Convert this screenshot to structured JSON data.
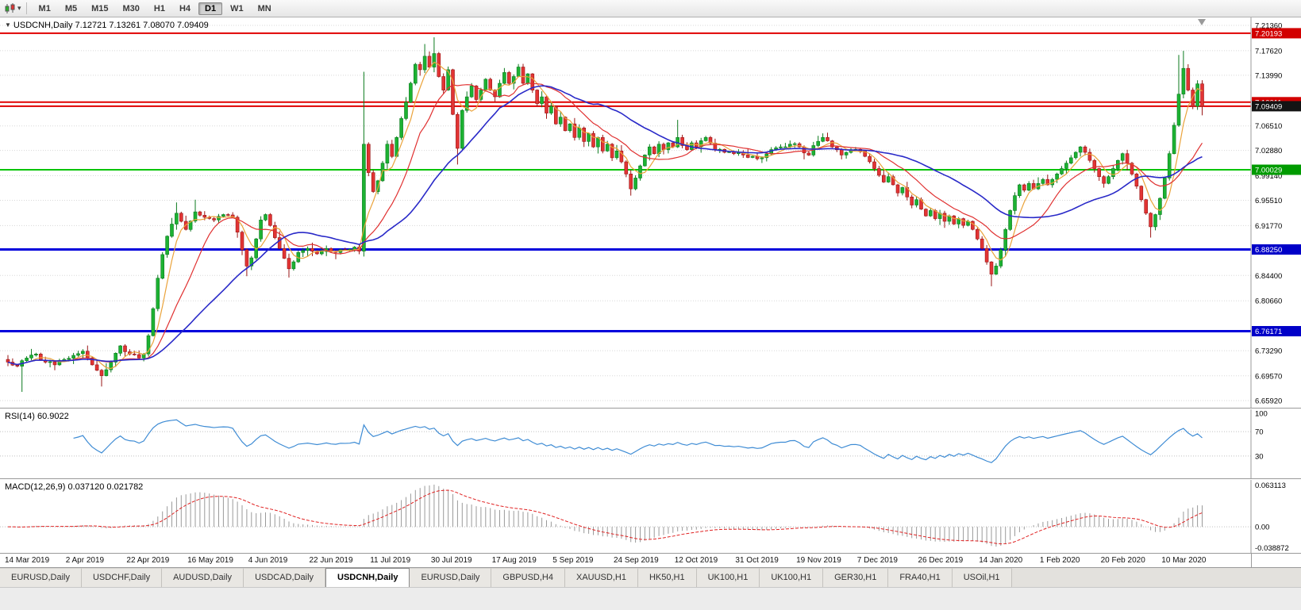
{
  "toolbar": {
    "timeframes": [
      "M1",
      "M5",
      "M15",
      "M30",
      "H1",
      "H4",
      "D1",
      "W1",
      "MN"
    ],
    "active_timeframe": "D1"
  },
  "chart": {
    "marker": "▼",
    "symbol": "USDCNH,Daily",
    "ohlc": "7.12721 7.13261 7.08070 7.09409"
  },
  "indicators": {
    "rsi_label": "RSI(14)",
    "rsi_value": "60.9022",
    "macd_label": "MACD(12,26,9)",
    "macd_values": "0.037120 0.021782"
  },
  "price_scale": {
    "ticks": [
      7.2136,
      7.1762,
      7.1399,
      7.0651,
      7.0288,
      6.9914,
      6.9551,
      6.9177,
      6.844,
      6.8066,
      6.7329,
      6.6957,
      6.6592
    ],
    "badges": [
      {
        "text": "7.20193",
        "price": 7.20193,
        "bg": "#d20000"
      },
      {
        "text": "7.10011",
        "price": 7.10011,
        "bg": "#d20000"
      },
      {
        "text": "7.09409",
        "price": 7.09409,
        "bg": "#141414"
      },
      {
        "text": "7.00029",
        "price": 7.00029,
        "bg": "#009b00"
      },
      {
        "text": "6.88250",
        "price": 6.8825,
        "bg": "#0000c8"
      },
      {
        "text": "6.76171",
        "price": 6.76171,
        "bg": "#0000c8"
      }
    ]
  },
  "colors": {
    "up": "#1cb232",
    "up_border": "#0b7a1e",
    "down": "#e23434",
    "down_border": "#9a1515",
    "grid": "#d8d8d8",
    "divider": "#9a9a9a",
    "rsi_line": "#3d8bd4",
    "macd_hist": "#9a9a9a",
    "macd_signal": "#e02020"
  },
  "chart_data": {
    "type": "candlestick",
    "symbol": "USDCNH",
    "timeframe": "Daily",
    "n_candles": 256,
    "ylim": [
      6.6486,
      7.2253
    ],
    "current_price": 7.09409,
    "hlines": [
      {
        "price": 7.20193,
        "color": "#e00000",
        "width": 2
      },
      {
        "price": 7.10011,
        "color": "#e00000",
        "width": 2
      },
      {
        "price": 7.09409,
        "color": "#e00000",
        "width": 2
      },
      {
        "price": 7.00029,
        "color": "#00c400",
        "width": 2
      },
      {
        "price": 6.8825,
        "color": "#0000dc",
        "width": 3
      },
      {
        "price": 6.76171,
        "color": "#0000dc",
        "width": 3
      }
    ],
    "moving_averages": [
      {
        "period": 5,
        "color": "#eaa33b"
      },
      {
        "period": 13,
        "color": "#e03030"
      },
      {
        "period": 30,
        "color": "#2929c8"
      }
    ],
    "close_anchors": [
      [
        0,
        6.716
      ],
      [
        2,
        6.71
      ],
      [
        4,
        6.722
      ],
      [
        6,
        6.728
      ],
      [
        8,
        6.716
      ],
      [
        10,
        6.712
      ],
      [
        12,
        6.72
      ],
      [
        14,
        6.726
      ],
      [
        16,
        6.732
      ],
      [
        18,
        6.712
      ],
      [
        20,
        6.696
      ],
      [
        22,
        6.716
      ],
      [
        24,
        6.74
      ],
      [
        26,
        6.728
      ],
      [
        28,
        6.722
      ],
      [
        29,
        6.728
      ],
      [
        30,
        6.755
      ],
      [
        31,
        6.795
      ],
      [
        32,
        6.84
      ],
      [
        33,
        6.875
      ],
      [
        34,
        6.902
      ],
      [
        35,
        6.92
      ],
      [
        36,
        6.936
      ],
      [
        37,
        6.924
      ],
      [
        38,
        6.912
      ],
      [
        40,
        6.938
      ],
      [
        42,
        6.93
      ],
      [
        44,
        6.926
      ],
      [
        46,
        6.934
      ],
      [
        48,
        6.93
      ],
      [
        49,
        6.908
      ],
      [
        50,
        6.882
      ],
      [
        51,
        6.858
      ],
      [
        52,
        6.87
      ],
      [
        53,
        6.898
      ],
      [
        54,
        6.926
      ],
      [
        55,
        6.934
      ],
      [
        56,
        6.918
      ],
      [
        57,
        6.9
      ],
      [
        58,
        6.884
      ],
      [
        60,
        6.854
      ],
      [
        62,
        6.878
      ],
      [
        64,
        6.884
      ],
      [
        66,
        6.876
      ],
      [
        68,
        6.884
      ],
      [
        70,
        6.878
      ],
      [
        72,
        6.882
      ],
      [
        74,
        6.886
      ],
      [
        75,
        6.88
      ],
      [
        76,
        7.038
      ],
      [
        77,
        6.996
      ],
      [
        78,
        6.968
      ],
      [
        79,
        6.984
      ],
      [
        80,
        7.01
      ],
      [
        81,
        7.038
      ],
      [
        82,
        7.02
      ],
      [
        83,
        7.048
      ],
      [
        84,
        7.076
      ],
      [
        85,
        7.1
      ],
      [
        86,
        7.128
      ],
      [
        87,
        7.156
      ],
      [
        88,
        7.148
      ],
      [
        89,
        7.168
      ],
      [
        90,
        7.152
      ],
      [
        91,
        7.172
      ],
      [
        92,
        7.138
      ],
      [
        93,
        7.118
      ],
      [
        94,
        7.148
      ],
      [
        95,
        7.082
      ],
      [
        96,
        7.032
      ],
      [
        97,
        7.088
      ],
      [
        98,
        7.108
      ],
      [
        99,
        7.124
      ],
      [
        100,
        7.104
      ],
      [
        101,
        7.118
      ],
      [
        102,
        7.134
      ],
      [
        103,
        7.118
      ],
      [
        104,
        7.108
      ],
      [
        105,
        7.128
      ],
      [
        106,
        7.144
      ],
      [
        107,
        7.128
      ],
      [
        108,
        7.138
      ],
      [
        109,
        7.152
      ],
      [
        110,
        7.128
      ],
      [
        111,
        7.142
      ],
      [
        112,
        7.118
      ],
      [
        113,
        7.098
      ],
      [
        114,
        7.108
      ],
      [
        115,
        7.084
      ],
      [
        116,
        7.094
      ],
      [
        117,
        7.068
      ],
      [
        118,
        7.078
      ],
      [
        119,
        7.058
      ],
      [
        120,
        7.068
      ],
      [
        121,
        7.048
      ],
      [
        122,
        7.062
      ],
      [
        123,
        7.042
      ],
      [
        124,
        7.054
      ],
      [
        125,
        7.034
      ],
      [
        126,
        7.048
      ],
      [
        127,
        7.028
      ],
      [
        128,
        7.038
      ],
      [
        129,
        7.018
      ],
      [
        130,
        7.028
      ],
      [
        131,
        7.012
      ],
      [
        132,
        6.994
      ],
      [
        133,
        6.972
      ],
      [
        134,
        6.988
      ],
      [
        135,
        7.006
      ],
      [
        136,
        7.022
      ],
      [
        137,
        7.034
      ],
      [
        138,
        7.024
      ],
      [
        139,
        7.038
      ],
      [
        140,
        7.03
      ],
      [
        141,
        7.04
      ],
      [
        142,
        7.034
      ],
      [
        143,
        7.048
      ],
      [
        144,
        7.036
      ],
      [
        145,
        7.03
      ],
      [
        146,
        7.04
      ],
      [
        147,
        7.034
      ],
      [
        149,
        7.048
      ],
      [
        151,
        7.03
      ],
      [
        153,
        7.026
      ],
      [
        155,
        7.024
      ],
      [
        157,
        7.022
      ],
      [
        159,
        7.02
      ],
      [
        161,
        7.018
      ],
      [
        163,
        7.03
      ],
      [
        165,
        7.034
      ],
      [
        167,
        7.038
      ],
      [
        169,
        7.034
      ],
      [
        171,
        7.022
      ],
      [
        172,
        7.036
      ],
      [
        174,
        7.048
      ],
      [
        176,
        7.034
      ],
      [
        178,
        7.022
      ],
      [
        180,
        7.03
      ],
      [
        182,
        7.028
      ],
      [
        183,
        7.02
      ],
      [
        184,
        7.012
      ],
      [
        185,
        7.002
      ],
      [
        186,
        6.992
      ],
      [
        187,
        6.982
      ],
      [
        188,
        6.99
      ],
      [
        189,
        6.978
      ],
      [
        190,
        6.966
      ],
      [
        191,
        6.974
      ],
      [
        192,
        6.96
      ],
      [
        193,
        6.948
      ],
      [
        194,
        6.956
      ],
      [
        195,
        6.942
      ],
      [
        196,
        6.932
      ],
      [
        197,
        6.94
      ],
      [
        198,
        6.928
      ],
      [
        199,
        6.936
      ],
      [
        200,
        6.924
      ],
      [
        201,
        6.932
      ],
      [
        202,
        6.92
      ],
      [
        203,
        6.928
      ],
      [
        204,
        6.918
      ],
      [
        205,
        6.924
      ],
      [
        206,
        6.912
      ],
      [
        207,
        6.898
      ],
      [
        208,
        6.884
      ],
      [
        209,
        6.864
      ],
      [
        210,
        6.846
      ],
      [
        211,
        6.858
      ],
      [
        212,
        6.882
      ],
      [
        213,
        6.912
      ],
      [
        214,
        6.94
      ],
      [
        215,
        6.962
      ],
      [
        216,
        6.978
      ],
      [
        217,
        6.97
      ],
      [
        218,
        6.98
      ],
      [
        219,
        6.972
      ],
      [
        220,
        6.98
      ],
      [
        221,
        6.986
      ],
      [
        222,
        6.978
      ],
      [
        223,
        6.986
      ],
      [
        224,
        6.994
      ],
      [
        225,
        7.002
      ],
      [
        226,
        7.01
      ],
      [
        227,
        7.018
      ],
      [
        228,
        7.026
      ],
      [
        229,
        7.034
      ],
      [
        230,
        7.026
      ],
      [
        231,
        7.014
      ],
      [
        232,
        7.002
      ],
      [
        233,
        6.99
      ],
      [
        234,
        6.98
      ],
      [
        235,
        6.99
      ],
      [
        236,
        7.002
      ],
      [
        237,
        7.014
      ],
      [
        238,
        7.024
      ],
      [
        239,
        7.01
      ],
      [
        240,
        6.994
      ],
      [
        241,
        6.976
      ],
      [
        242,
        6.956
      ],
      [
        243,
        6.936
      ],
      [
        244,
        6.916
      ],
      [
        245,
        6.934
      ],
      [
        246,
        6.958
      ],
      [
        247,
        6.988
      ],
      [
        248,
        7.024
      ],
      [
        249,
        7.066
      ],
      [
        250,
        7.112
      ],
      [
        251,
        7.15
      ],
      [
        252,
        7.118
      ],
      [
        253,
        7.094
      ],
      [
        254,
        7.12721
      ],
      [
        255,
        7.09409
      ]
    ],
    "wick_overrides": {
      "3": {
        "low": 6.672
      },
      "20": {
        "low": 6.68
      },
      "36": {
        "high": 6.952
      },
      "40": {
        "high": 6.956
      },
      "51": {
        "low": 6.843
      },
      "60": {
        "low": 6.841
      },
      "76": {
        "high": 7.145,
        "low": 6.872
      },
      "89": {
        "high": 7.186
      },
      "91": {
        "high": 7.196
      },
      "96": {
        "low": 7.008
      },
      "133": {
        "low": 6.962
      },
      "143": {
        "high": 7.074
      },
      "210": {
        "low": 6.828
      },
      "244": {
        "low": 6.9
      },
      "250": {
        "high": 7.17
      },
      "251": {
        "high": 7.176
      },
      "255": {
        "high": 7.13261,
        "low": 7.0807
      }
    },
    "x_labels": [
      {
        "text": "14 Mar 2019",
        "index": 0
      },
      {
        "text": "2 Apr 2019",
        "index": 13
      },
      {
        "text": "22 Apr 2019",
        "index": 26
      },
      {
        "text": "16 May 2019",
        "index": 39
      },
      {
        "text": "4 Jun 2019",
        "index": 52
      },
      {
        "text": "22 Jun 2019",
        "index": 65
      },
      {
        "text": "11 Jul 2019",
        "index": 78
      },
      {
        "text": "30 Jul 2019",
        "index": 91
      },
      {
        "text": "17 Aug 2019",
        "index": 104
      },
      {
        "text": "5 Sep 2019",
        "index": 117
      },
      {
        "text": "24 Sep 2019",
        "index": 130
      },
      {
        "text": "12 Oct 2019",
        "index": 143
      },
      {
        "text": "31 Oct 2019",
        "index": 156
      },
      {
        "text": "19 Nov 2019",
        "index": 169
      },
      {
        "text": "7 Dec 2019",
        "index": 182
      },
      {
        "text": "26 Dec 2019",
        "index": 195
      },
      {
        "text": "14 Jan 2020",
        "index": 208
      },
      {
        "text": "1 Feb 2020",
        "index": 221
      },
      {
        "text": "20 Feb 2020",
        "index": 234
      },
      {
        "text": "10 Mar 2020",
        "index": 247
      }
    ],
    "rsi": {
      "period": 14,
      "levels": [
        70,
        30
      ],
      "scale_values": [
        100,
        70,
        30
      ]
    },
    "macd": {
      "fast": 12,
      "slow": 26,
      "signal": 9,
      "scale_top": "0.063113",
      "scale_zero": "0.00",
      "scale_bottom": "-0.038872"
    }
  },
  "tabs": {
    "items": [
      "EURUSD,Daily",
      "USDCHF,Daily",
      "AUDUSD,Daily",
      "USDCAD,Daily",
      "USDCNH,Daily",
      "EURUSD,Daily",
      "GBPUSD,H4",
      "XAUUSD,H1",
      "HK50,H1",
      "UK100,H1",
      "UK100,H1",
      "GER30,H1",
      "FRA40,H1",
      "USOil,H1"
    ],
    "active_index": 4
  }
}
